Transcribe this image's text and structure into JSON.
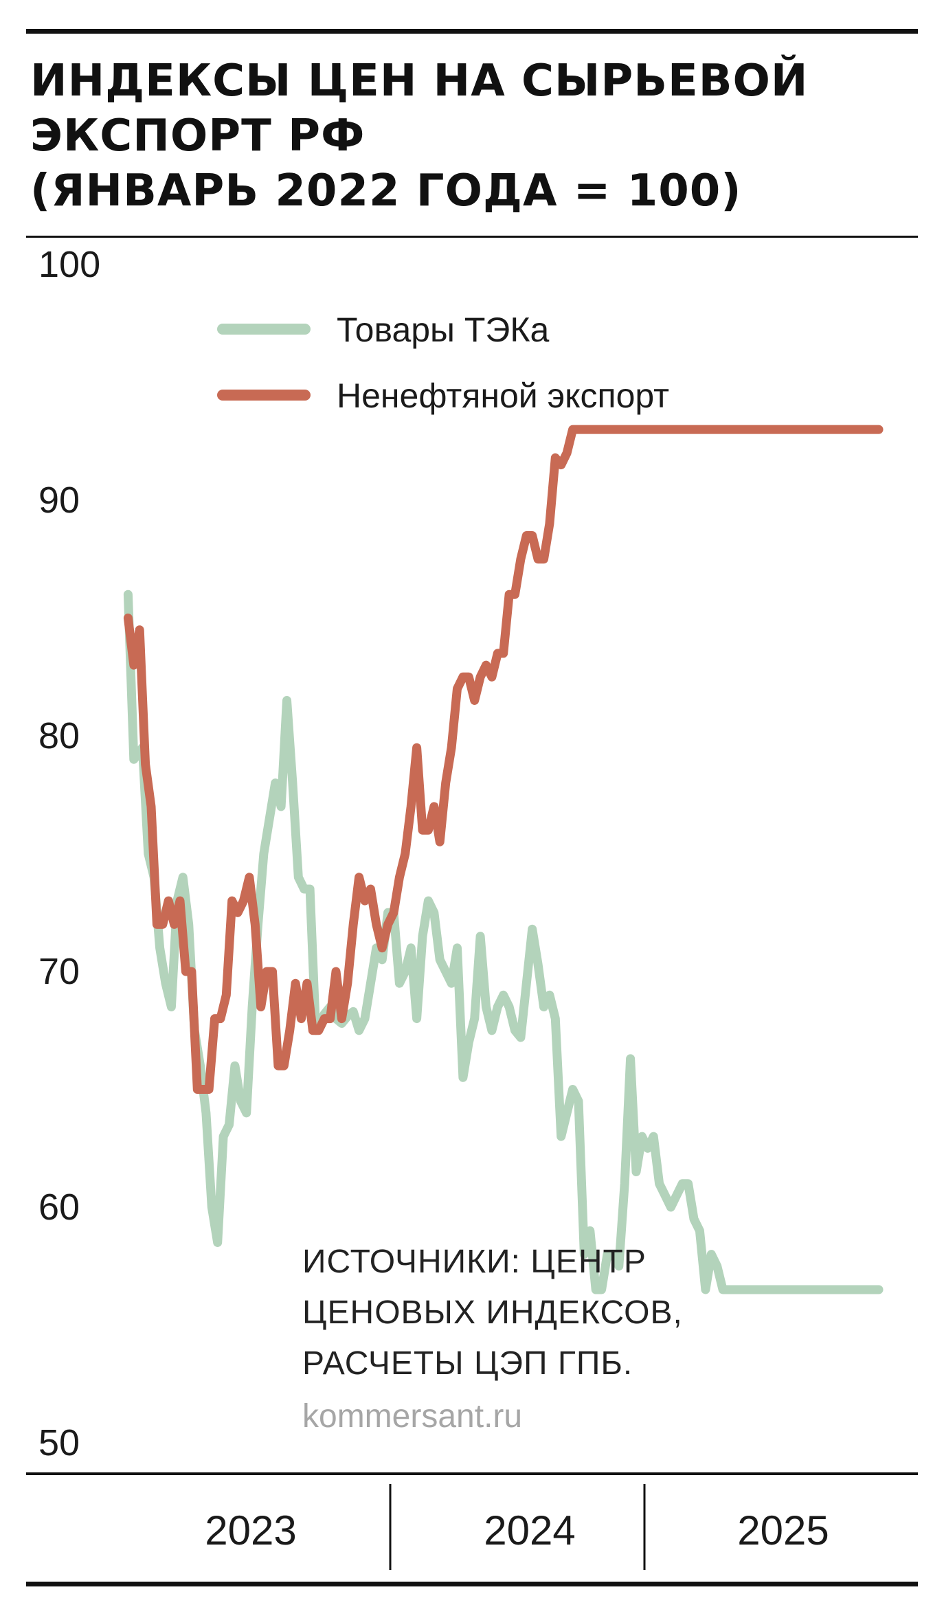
{
  "title_lines": [
    "ИНДЕКСЫ ЦЕН НА СЫРЬЕВОЙ",
    "ЭКСПОРТ РФ",
    "(ЯНВАРЬ 2022 ГОДА = 100)"
  ],
  "source_lines": [
    "ИСТОЧНИКИ: ЦЕНТР",
    "ЦЕНОВЫХ ИНДЕКСОВ,",
    "РАСЧЕТЫ ЦЭП ГПБ."
  ],
  "site": "kommersant.ru",
  "colors": {
    "series_1": "#b3d3bb",
    "series_2": "#c86a54",
    "text": "#1a1a1a",
    "rule": "#111111"
  },
  "chart_data": {
    "type": "line",
    "title": "ИНДЕКСЫ ЦЕН НА СЫРЬЕВОЙ ЭКСПОРТ РФ (ЯНВАРЬ 2022 ГОДА = 100)",
    "xlabel": "",
    "ylabel": "",
    "ylim": [
      50,
      100
    ],
    "yticks": [
      100,
      90,
      80,
      70,
      60,
      50
    ],
    "xticks": [
      "2023",
      "2024",
      "2025"
    ],
    "xlim": [
      2022.78,
      2025.45
    ],
    "grid": false,
    "legend": "top-left",
    "series": [
      {
        "name": "Товары ТЭКа",
        "color": "#b3d3bb",
        "x": [
          2022.8,
          2022.82,
          2022.85,
          2022.87,
          2022.89,
          2022.91,
          2022.93,
          2022.95,
          2022.97,
          2022.99,
          2023.01,
          2023.03,
          2023.05,
          2023.07,
          2023.09,
          2023.11,
          2023.13,
          2023.15,
          2023.17,
          2023.19,
          2023.21,
          2023.23,
          2023.25,
          2023.27,
          2023.29,
          2023.31,
          2023.33,
          2023.35,
          2023.37,
          2023.39,
          2023.41,
          2023.43,
          2023.45,
          2023.48,
          2023.5,
          2023.52,
          2023.54,
          2023.56,
          2023.58,
          2023.6,
          2023.62,
          2023.64,
          2023.66,
          2023.68,
          2023.7,
          2023.72,
          2023.74,
          2023.76,
          2023.78,
          2023.8,
          2023.82,
          2023.84,
          2023.86,
          2023.88,
          2023.9,
          2023.92,
          2023.94,
          2023.96,
          2023.98,
          2024.0,
          2024.02,
          2024.04,
          2024.06,
          2024.08,
          2024.1,
          2024.12,
          2024.14,
          2024.16,
          2024.18,
          2024.2,
          2024.22,
          2024.24,
          2024.26,
          2024.28,
          2024.3,
          2024.32,
          2024.34,
          2024.36,
          2024.38,
          2024.4,
          2024.42,
          2024.44,
          2024.46,
          2024.48,
          2024.5,
          2024.52,
          2024.54,
          2024.56,
          2024.58,
          2024.6,
          2024.62,
          2024.64,
          2024.66,
          2024.68,
          2024.7,
          2024.72,
          2024.74,
          2024.76,
          2024.78,
          2024.8,
          2024.82,
          2024.84,
          2024.86,
          2024.88,
          2024.9,
          2024.92,
          2024.94,
          2024.96,
          2024.98,
          2025.0,
          2025.02,
          2025.04,
          2025.06,
          2025.08,
          2025.1,
          2025.12,
          2025.14,
          2025.16,
          2025.18,
          2025.2,
          2025.22,
          2025.24,
          2025.26,
          2025.28,
          2025.3,
          2025.32,
          2025.34,
          2025.36,
          2025.38,
          2025.4
        ],
        "values": [
          86,
          79,
          79.5,
          75,
          74,
          71,
          69.5,
          68.5,
          73,
          74,
          72,
          67.5,
          66,
          64,
          60,
          58.5,
          63,
          63.5,
          66,
          64.5,
          64,
          68.5,
          72,
          75,
          76.5,
          78,
          77,
          81.5,
          78,
          74,
          73.5,
          73.5,
          67.5,
          68.2,
          68.5,
          68,
          67.8,
          68.1,
          68.3,
          67.5,
          68,
          69.5,
          71,
          70.5,
          72.5,
          72.5,
          69.5,
          70,
          71,
          68,
          71.5,
          73,
          72.5,
          70.5,
          70,
          69.5,
          71,
          65.5,
          67,
          68,
          71.5,
          68.5,
          67.5,
          68.5,
          69,
          68.5,
          67.5,
          67.2,
          69.5,
          71.8,
          70.3,
          68.5,
          69,
          68,
          63,
          64,
          65,
          64.5,
          58,
          59,
          56.5,
          56.5,
          58,
          58,
          57.5,
          61,
          66.3,
          61.5,
          63,
          62.5,
          63,
          61,
          60.5,
          60,
          60.5,
          61,
          61,
          59.5,
          59,
          56.5,
          58,
          57.5,
          56.5,
          56.5,
          56.5,
          56.5,
          56.5,
          56.5,
          56.5,
          56.5,
          56.5,
          56.5,
          56.5,
          56.5,
          56.5,
          56.5,
          56.5,
          56.5,
          56.5,
          56.5,
          56.5,
          56.5,
          56.5,
          56.5,
          56.5,
          56.5,
          56.5,
          56.5,
          56.5,
          56.5
        ]
      },
      {
        "name": "Ненефтяной экспорт",
        "color": "#c86a54",
        "x": [
          2022.8,
          2022.82,
          2022.84,
          2022.86,
          2022.88,
          2022.9,
          2022.92,
          2022.94,
          2022.96,
          2022.98,
          2023.0,
          2023.02,
          2023.04,
          2023.06,
          2023.08,
          2023.1,
          2023.12,
          2023.14,
          2023.16,
          2023.18,
          2023.2,
          2023.22,
          2023.24,
          2023.26,
          2023.28,
          2023.3,
          2023.32,
          2023.34,
          2023.36,
          2023.38,
          2023.4,
          2023.42,
          2023.44,
          2023.46,
          2023.48,
          2023.5,
          2023.52,
          2023.54,
          2023.56,
          2023.58,
          2023.6,
          2023.62,
          2023.64,
          2023.66,
          2023.68,
          2023.7,
          2023.72,
          2023.74,
          2023.76,
          2023.78,
          2023.8,
          2023.82,
          2023.84,
          2023.86,
          2023.88,
          2023.9,
          2023.92,
          2023.94,
          2023.96,
          2023.98,
          2024.0,
          2024.02,
          2024.04,
          2024.06,
          2024.08,
          2024.1,
          2024.12,
          2024.14,
          2024.16,
          2024.18,
          2024.2,
          2024.22,
          2024.24,
          2024.26,
          2024.28,
          2024.3,
          2024.32,
          2024.34,
          2024.36,
          2024.38,
          2024.4,
          2024.42,
          2024.44,
          2024.46,
          2024.48,
          2024.5,
          2024.52,
          2024.54,
          2024.56,
          2024.58,
          2024.6,
          2024.62,
          2024.64,
          2024.66,
          2024.68,
          2024.7,
          2024.72,
          2024.74,
          2024.76,
          2024.78,
          2024.8,
          2024.82,
          2024.84,
          2024.86,
          2024.88,
          2024.9,
          2024.92,
          2024.94,
          2024.96,
          2024.98,
          2025.0,
          2025.02,
          2025.04,
          2025.06,
          2025.08,
          2025.1,
          2025.12,
          2025.14,
          2025.16,
          2025.18,
          2025.2,
          2025.22,
          2025.24,
          2025.26,
          2025.28,
          2025.3,
          2025.32,
          2025.34,
          2025.36,
          2025.38,
          2025.4
        ],
        "values": [
          85,
          83,
          84.5,
          78.8,
          77,
          72,
          72,
          73,
          72,
          73,
          70,
          70,
          65,
          65,
          65,
          68,
          68,
          69,
          73,
          72.5,
          73,
          74,
          72,
          68.5,
          70,
          70,
          66,
          66,
          67.5,
          69.5,
          68,
          69.5,
          67.5,
          67.5,
          68,
          68,
          70,
          68,
          69.5,
          72,
          74,
          73,
          73.5,
          72,
          71,
          72,
          72.5,
          74,
          75,
          77,
          79.5,
          76,
          76,
          77,
          75.5,
          78,
          79.5,
          82,
          82.5,
          82.5,
          81.5,
          82.5,
          83,
          82.5,
          83.5,
          83.5,
          86,
          86,
          87.5,
          88.5,
          88.5,
          87.5,
          87.5,
          89,
          91.8,
          91.5,
          92,
          93,
          93,
          93,
          93,
          93,
          93,
          93,
          93,
          93,
          93,
          93,
          93,
          93,
          93,
          93,
          93,
          93,
          93,
          93,
          93,
          93,
          93,
          93,
          93,
          93,
          93,
          93,
          93,
          93,
          93,
          93,
          93,
          93,
          93,
          93,
          93,
          93,
          93,
          93,
          93,
          93,
          93,
          93,
          93,
          93,
          93,
          93,
          93,
          93,
          93,
          93,
          93,
          93,
          93
        ]
      }
    ]
  }
}
